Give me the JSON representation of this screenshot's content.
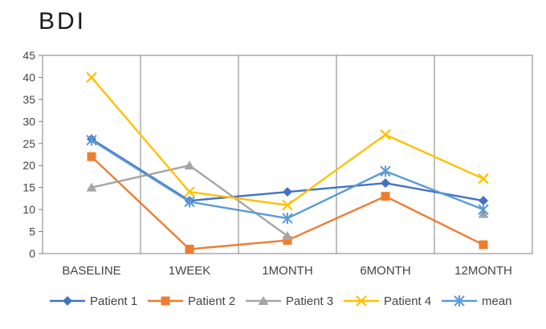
{
  "chart_data": {
    "type": "line",
    "title": "BDI",
    "xlabel": "",
    "ylabel": "",
    "categories": [
      "BASELINE",
      "1WEEK",
      "1MONTH",
      "6MONTH",
      "12MONTH"
    ],
    "ylim": [
      0,
      45
    ],
    "yticks": [
      0,
      5,
      10,
      15,
      20,
      25,
      30,
      35,
      40,
      45
    ],
    "grid": "vertical separators between categories",
    "legend_position": "bottom",
    "series": [
      {
        "name": "Patient 1",
        "values": [
          26,
          12,
          14,
          16,
          12
        ],
        "color": "#4472C4",
        "marker": "diamond"
      },
      {
        "name": "Patient 2",
        "values": [
          22,
          1,
          3,
          13,
          2
        ],
        "color": "#ED7D31",
        "marker": "square"
      },
      {
        "name": "Patient 3",
        "values": [
          15,
          20,
          4,
          null,
          9
        ],
        "color": "#A5A5A5",
        "marker": "triangle"
      },
      {
        "name": "Patient 4",
        "values": [
          40,
          14,
          11,
          27,
          17
        ],
        "color": "#FFC000",
        "marker": "x"
      },
      {
        "name": "mean",
        "values": [
          25.75,
          11.75,
          8,
          18.7,
          10
        ],
        "color": "#5B9BD5",
        "marker": "star"
      }
    ]
  }
}
